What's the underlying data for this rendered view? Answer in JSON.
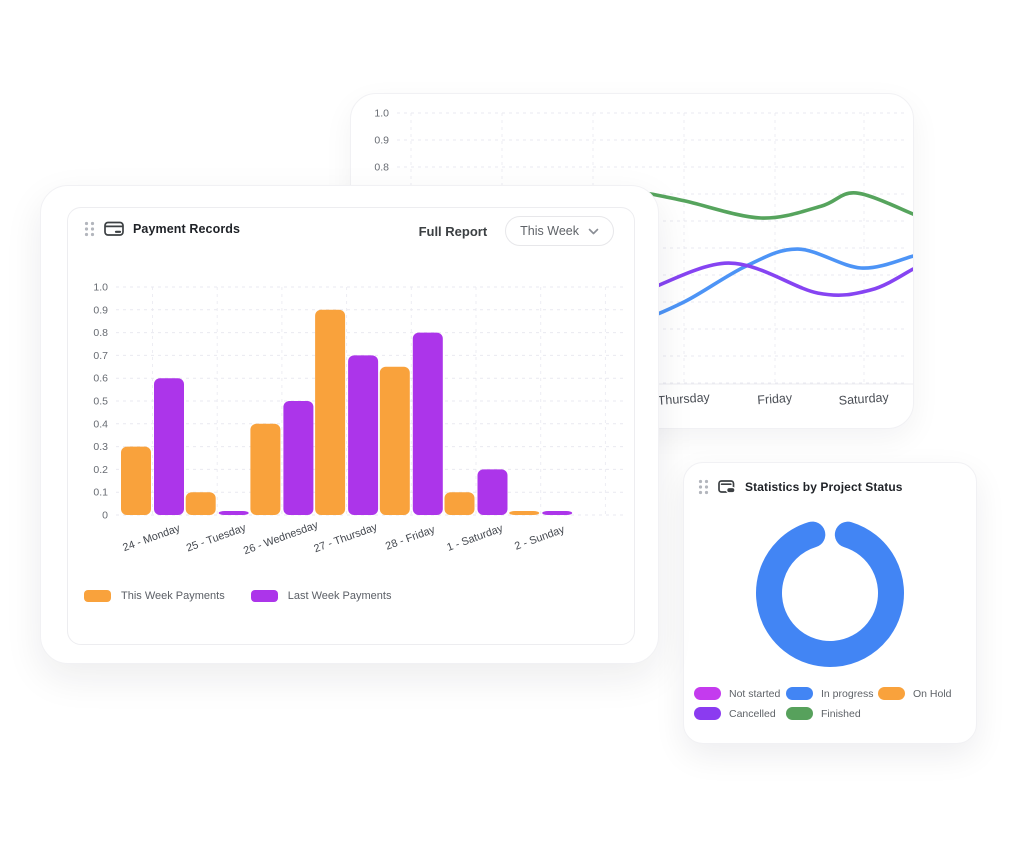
{
  "payment_card": {
    "title": "Payment Records",
    "full_report_label": "Full Report",
    "range_selector": {
      "value": "This Week"
    },
    "legend": [
      {
        "label": "This Week Payments",
        "color": "#F9A23C"
      },
      {
        "label": "Last Week Payments",
        "color": "#AC35EA"
      }
    ]
  },
  "stats_card": {
    "title": "Statistics by Project Status",
    "legend": [
      {
        "label": "Not started",
        "color": "#C43BEE"
      },
      {
        "label": "In progress",
        "color": "#4285F4"
      },
      {
        "label": "On Hold",
        "color": "#F9A23C"
      },
      {
        "label": "Cancelled",
        "color": "#8B3BF0"
      },
      {
        "label": "Finished",
        "color": "#57A15C"
      }
    ]
  },
  "chart_data": [
    {
      "id": "payments",
      "type": "bar",
      "title": "Payment Records",
      "categories": [
        "24 - Monday",
        "25 - Tuesday",
        "26 - Wednesday",
        "27 - Thursday",
        "28 - Friday",
        "1 - Saturday",
        "2 - Sunday"
      ],
      "series": [
        {
          "name": "This Week Payments",
          "color": "#F9A23C",
          "values": [
            0.3,
            0.1,
            0.4,
            0.9,
            0.65,
            0.1,
            0.01
          ]
        },
        {
          "name": "Last Week Payments",
          "color": "#AC35EA",
          "values": [
            0.6,
            0.01,
            0.5,
            0.7,
            0.8,
            0.2,
            0.01
          ]
        }
      ],
      "ylim": [
        0,
        1.0
      ],
      "ytick_step": 0.1,
      "grid": "dashed"
    },
    {
      "id": "weekly_trend",
      "type": "line",
      "categories_visible": [
        "Thursday",
        "Friday",
        "Saturday"
      ],
      "day_columns": {
        "Thursday": 333,
        "Friday": 424,
        "Saturday": 513
      },
      "ylim": [
        0,
        1.0
      ],
      "yticks_visible": [
        1.0,
        0.9,
        0.8
      ],
      "grid": "dashed",
      "note": "left portion occluded by Payment Records card; point values estimated from pixels",
      "series": [
        {
          "name": "green",
          "color": "#56A45D",
          "points": [
            [
              0,
              0.7
            ],
            [
              80,
              0.63
            ],
            [
              160,
              0.71
            ],
            [
              240,
              0.72
            ],
            [
              288,
              0.707
            ],
            [
              333,
              0.675
            ],
            [
              410,
              0.611
            ],
            [
              470,
              0.655
            ],
            [
              505,
              0.704
            ],
            [
              562,
              0.626
            ]
          ]
        },
        {
          "name": "blue",
          "color": "#4D94F6",
          "points": [
            [
              0,
              0.3
            ],
            [
              80,
              0.25
            ],
            [
              160,
              0.222
            ],
            [
              240,
              0.215
            ],
            [
              280,
              0.222
            ],
            [
              333,
              0.3
            ],
            [
              395,
              0.433
            ],
            [
              447,
              0.496
            ],
            [
              510,
              0.426
            ],
            [
              562,
              0.47
            ]
          ]
        },
        {
          "name": "purple",
          "color": "#8644F2",
          "points": [
            [
              0,
              0.4
            ],
            [
              80,
              0.345
            ],
            [
              160,
              0.305
            ],
            [
              240,
              0.315
            ],
            [
              280,
              0.322
            ],
            [
              377,
              0.444
            ],
            [
              467,
              0.333
            ],
            [
              520,
              0.345
            ],
            [
              562,
              0.422
            ]
          ]
        }
      ]
    },
    {
      "id": "project_status",
      "type": "donut",
      "labels": [
        "Not started",
        "In progress",
        "On Hold",
        "Cancelled",
        "Finished"
      ],
      "colors": [
        "#C43BEE",
        "#4285F4",
        "#F9A23C",
        "#8B3BF0",
        "#57A15C"
      ],
      "values": [
        0,
        100,
        0,
        0,
        0
      ],
      "ring_color": "#4285F4",
      "gap_deg": 34
    }
  ]
}
